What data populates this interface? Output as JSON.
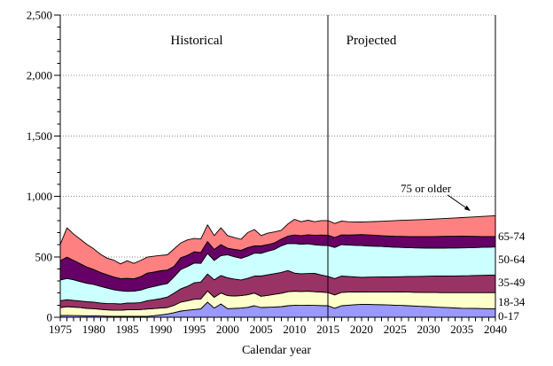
{
  "figure": {
    "historical_label": "Historical",
    "projected_label": "Projected",
    "annotation_label": "75 or older",
    "right_labels": [
      "65-74",
      "50-64",
      "35-49",
      "18-34",
      "0-17"
    ]
  },
  "chart_data": {
    "type": "area",
    "stacked": true,
    "title": "",
    "xlabel": "Calendar year",
    "ylabel": "",
    "ylim": [
      0,
      2500
    ],
    "yticks": [
      0,
      500,
      1000,
      1500,
      2000,
      2500
    ],
    "ytick_labels": [
      "0",
      "500",
      "1,000",
      "1,500",
      "2,000",
      "2,500"
    ],
    "y_minor_tick_step": 100,
    "xticks": [
      1975,
      1980,
      1985,
      1990,
      1995,
      2000,
      2005,
      2010,
      2015,
      2020,
      2025,
      2030,
      2035,
      2040
    ],
    "x_minor_tick_step": 1,
    "grid": "dotted-horizontal",
    "divider_year": 2015,
    "regions": [
      "Historical",
      "Projected"
    ],
    "annotation": "75 or older",
    "x": [
      1975,
      1976,
      1977,
      1978,
      1979,
      1980,
      1981,
      1982,
      1983,
      1984,
      1985,
      1986,
      1987,
      1988,
      1989,
      1990,
      1991,
      1992,
      1993,
      1994,
      1995,
      1996,
      1997,
      1998,
      1999,
      2000,
      2001,
      2002,
      2003,
      2004,
      2005,
      2006,
      2007,
      2008,
      2009,
      2010,
      2011,
      2012,
      2013,
      2014,
      2015,
      2016,
      2017,
      2018,
      2019,
      2020,
      2021,
      2022,
      2023,
      2024,
      2025,
      2026,
      2027,
      2028,
      2029,
      2030,
      2031,
      2032,
      2033,
      2034,
      2035,
      2036,
      2037,
      2038,
      2039,
      2040
    ],
    "series": [
      {
        "name": "0-17",
        "color": "#9999FF",
        "values": [
          15,
          15,
          14,
          13,
          12,
          12,
          10,
          9,
          8,
          7,
          7,
          7,
          8,
          8,
          13,
          20,
          27,
          38,
          51,
          58,
          64,
          70,
          125,
          76,
          110,
          71,
          73,
          76,
          82,
          95,
          81,
          83,
          85,
          88,
          95,
          100,
          98,
          100,
          98,
          97,
          95,
          75,
          95,
          100,
          104,
          107,
          106,
          105,
          104,
          102,
          100,
          98,
          95,
          93,
          90,
          88,
          85,
          82,
          80,
          77,
          75,
          74,
          73,
          72,
          71,
          71
        ]
      },
      {
        "name": "18-34",
        "color": "#FFFFCC",
        "values": [
          66,
          73,
          70,
          67,
          61,
          59,
          56,
          52,
          51,
          51,
          55,
          55,
          56,
          60,
          59,
          56,
          54,
          60,
          74,
          78,
          85,
          82,
          93,
          89,
          91,
          108,
          103,
          103,
          104,
          105,
          93,
          98,
          105,
          111,
          116,
          116,
          115,
          116,
          113,
          112,
          109,
          110,
          111,
          108,
          105,
          102,
          104,
          105,
          106,
          108,
          110,
          111,
          113,
          114,
          116,
          117,
          120,
          122,
          124,
          127,
          129,
          130,
          131,
          132,
          133,
          133
        ]
      },
      {
        "name": "35-49",
        "color": "#993366",
        "values": [
          56,
          57,
          56,
          54,
          55,
          54,
          52,
          52,
          54,
          52,
          56,
          56,
          58,
          69,
          73,
          79,
          86,
          102,
          110,
          120,
          136,
          139,
          140,
          145,
          144,
          147,
          140,
          130,
          136,
          141,
          167,
          170,
          171,
          172,
          175,
          149,
          147,
          146,
          152,
          141,
          134,
          135,
          135,
          130,
          125,
          122,
          122,
          123,
          124,
          124,
          125,
          127,
          129,
          131,
          133,
          135,
          136,
          137,
          138,
          138,
          139,
          140,
          142,
          143,
          144,
          146
        ]
      },
      {
        "name": "50-64",
        "color": "#CCFFFF",
        "values": [
          172,
          176,
          170,
          161,
          153,
          147,
          138,
          128,
          115,
          109,
          97,
          98,
          103,
          106,
          110,
          113,
          112,
          135,
          160,
          164,
          164,
          155,
          171,
          160,
          165,
          191,
          185,
          179,
          184,
          190,
          188,
          195,
          200,
          220,
          225,
          245,
          245,
          246,
          237,
          245,
          255,
          258,
          260,
          260,
          261,
          262,
          258,
          255,
          252,
          249,
          245,
          242,
          239,
          236,
          234,
          232,
          231,
          231,
          231,
          231,
          231,
          231,
          231,
          232,
          232,
          232
        ]
      },
      {
        "name": "65-74",
        "color": "#660066",
        "values": [
          159,
          177,
          160,
          147,
          134,
          123,
          115,
          110,
          105,
          101,
          107,
          102,
          110,
          122,
          119,
          117,
          112,
          85,
          98,
          92,
          93,
          90,
          98,
          91,
          91,
          54,
          60,
          66,
          70,
          60,
          61,
          55,
          55,
          55,
          60,
          70,
          70,
          74,
          78,
          85,
          86,
          82,
          80,
          82,
          87,
          91,
          91,
          90,
          89,
          89,
          90,
          91,
          92,
          94,
          95,
          96,
          96,
          97,
          97,
          97,
          97,
          95,
          92,
          89,
          87,
          85
        ]
      },
      {
        "name": "75 or older",
        "color": "#FF8080",
        "values": [
          135,
          242,
          218,
          203,
          187,
          171,
          150,
          138,
          140,
          121,
          146,
          128,
          135,
          133,
          131,
          127,
          126,
          145,
          122,
          128,
          110,
          111,
          138,
          115,
          139,
          105,
          98,
          91,
          125,
          135,
          86,
          95,
          90,
          73,
          100,
          130,
          115,
          121,
          112,
          120,
          121,
          116,
          115,
          110,
          107,
          104,
          109,
          114,
          119,
          125,
          130,
          133,
          136,
          138,
          140,
          142,
          145,
          147,
          149,
          152,
          154,
          158,
          162,
          166,
          170,
          173
        ]
      }
    ]
  }
}
